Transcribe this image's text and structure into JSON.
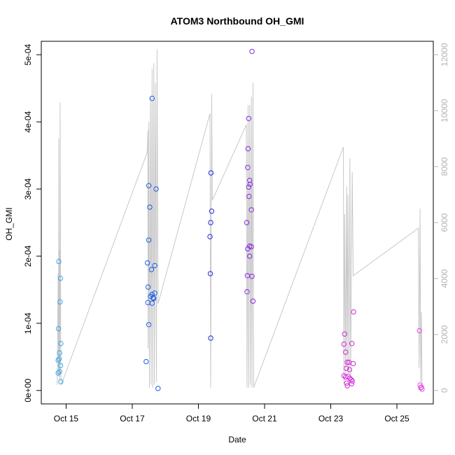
{
  "chart_data": {
    "type": "scatter",
    "title": "ATOM3 Northbound OH_GMI",
    "xlabel": "Date",
    "ylabel": "OH_GMI",
    "x_ticks": [
      "Oct 15",
      "Oct 17",
      "Oct 19",
      "Oct 21",
      "Oct 23",
      "Oct 25"
    ],
    "x_tick_values": [
      15,
      17,
      19,
      21,
      23,
      25
    ],
    "xlim": [
      14.25,
      26.1
    ],
    "y_ticks": [
      "0e+00",
      "1e-04",
      "2e-04",
      "3e-04",
      "4e-04",
      "5e-04"
    ],
    "y_tick_values": [
      0,
      0.0001,
      0.0002,
      0.0003,
      0.0004,
      0.0005
    ],
    "ylim": [
      -2e-05,
      0.00052
    ],
    "y2_ticks": [
      "0",
      "2000",
      "4000",
      "6000",
      "8000",
      "10000",
      "12000"
    ],
    "y2_tick_values": [
      0,
      2000,
      4000,
      6000,
      8000,
      10000,
      12000
    ],
    "y2lim": [
      -480,
      12480
    ],
    "colors": {
      "axis": "#000000",
      "secondary_axis": "#b3b3b3",
      "altitude_line": "#c8c8c8"
    },
    "series": [
      {
        "color": "#3aa8e8",
        "points": [
          [
            14.78,
            0.000192
          ],
          [
            14.77,
            9.2e-05
          ],
          [
            14.76,
            4.5e-05
          ],
          [
            14.79,
            4.7e-05
          ],
          [
            14.8,
            5.6e-05
          ],
          [
            14.8,
            2.8e-05
          ],
          [
            14.76,
            2.6e-05
          ],
          [
            14.83,
            0.000167
          ],
          [
            14.82,
            0.000132
          ],
          [
            14.84,
            7e-05
          ],
          [
            14.83,
            3.7e-05
          ],
          [
            14.84,
            1.3e-05
          ]
        ]
      },
      {
        "color": "#1f5fe8",
        "points": [
          [
            17.6,
            0.000435
          ],
          [
            17.5,
            0.000305
          ],
          [
            17.53,
            0.000273
          ],
          [
            17.5,
            0.000224
          ],
          [
            17.46,
            0.00019
          ],
          [
            17.58,
            0.00018
          ],
          [
            17.68,
            0.000186
          ],
          [
            17.72,
            0.0003
          ],
          [
            17.48,
            0.000154
          ],
          [
            17.55,
            0.00014
          ],
          [
            17.6,
            0.000143
          ],
          [
            17.63,
            0.000138
          ],
          [
            17.68,
            0.000145
          ],
          [
            17.6,
            0.00013
          ],
          [
            17.65,
            0.000137
          ],
          [
            17.47,
            0.000131
          ],
          [
            17.5,
            9.8e-05
          ],
          [
            17.42,
            4.3e-05
          ],
          [
            17.78,
            3e-06
          ]
        ]
      },
      {
        "color": "#2a2ae0",
        "points": [
          [
            19.38,
            0.000324
          ],
          [
            19.4,
            0.000267
          ],
          [
            19.37,
            0.00025
          ],
          [
            19.35,
            0.000229
          ],
          [
            19.36,
            0.000174
          ],
          [
            19.37,
            7.8e-05
          ]
        ]
      },
      {
        "color": "#8a2ae0",
        "points": [
          [
            20.62,
            0.000505
          ],
          [
            20.52,
            0.000405
          ],
          [
            20.5,
            0.00036
          ],
          [
            20.49,
            0.000332
          ],
          [
            20.55,
            0.000313
          ],
          [
            20.52,
            0.000303
          ],
          [
            20.56,
            0.000307
          ],
          [
            20.53,
            0.000289
          ],
          [
            20.6,
            0.000269
          ],
          [
            20.46,
            0.00025
          ],
          [
            20.55,
            0.000215
          ],
          [
            20.6,
            0.000214
          ],
          [
            20.49,
            0.000211
          ],
          [
            20.55,
            0.0002
          ],
          [
            20.48,
            0.000171
          ],
          [
            20.62,
            0.00017
          ],
          [
            20.47,
            0.000147
          ],
          [
            20.65,
            0.000133
          ]
        ]
      },
      {
        "color": "#d12ad6",
        "points": [
          [
            23.42,
            8.4e-05
          ],
          [
            23.4,
            6.9e-05
          ],
          [
            23.69,
            0.000117
          ],
          [
            23.64,
            7e-05
          ],
          [
            23.45,
            5.7e-05
          ],
          [
            23.5,
            4.2e-05
          ],
          [
            23.55,
            4.2e-05
          ],
          [
            23.68,
            4e-05
          ],
          [
            23.47,
            3.3e-05
          ],
          [
            23.57,
            3.1e-05
          ],
          [
            23.4,
            2.2e-05
          ],
          [
            23.45,
            2e-05
          ],
          [
            23.52,
            2.1e-05
          ],
          [
            23.58,
            1.8e-05
          ],
          [
            23.62,
            1.6e-05
          ],
          [
            23.65,
            1.4e-05
          ],
          [
            23.48,
            1.1e-05
          ],
          [
            23.63,
            1e-05
          ],
          [
            23.5,
            7e-06
          ]
        ]
      },
      {
        "color": "#e64fe0",
        "points": [
          [
            25.68,
            8.9e-05
          ],
          [
            25.7,
            8e-06
          ],
          [
            25.72,
            4e-06
          ],
          [
            25.74,
            5e-06
          ],
          [
            25.76,
            2e-06
          ]
        ]
      }
    ],
    "altitude_line": [
      [
        14.73,
        200
      ],
      [
        14.76,
        4200
      ],
      [
        14.77,
        500
      ],
      [
        14.78,
        9000
      ],
      [
        14.79,
        600
      ],
      [
        14.8,
        5000
      ],
      [
        14.81,
        400
      ],
      [
        14.82,
        10300
      ],
      [
        14.84,
        800
      ],
      [
        14.85,
        200
      ],
      [
        17.45,
        8500
      ],
      [
        17.47,
        9300
      ],
      [
        17.48,
        1500
      ],
      [
        17.5,
        9600
      ],
      [
        17.52,
        100
      ],
      [
        17.55,
        10500
      ],
      [
        17.57,
        200
      ],
      [
        17.6,
        11500
      ],
      [
        17.62,
        100
      ],
      [
        17.65,
        11700
      ],
      [
        17.67,
        200
      ],
      [
        17.7,
        11000
      ],
      [
        17.73,
        300
      ],
      [
        17.75,
        12200
      ],
      [
        17.78,
        3100
      ],
      [
        19.35,
        9900
      ],
      [
        19.37,
        100
      ],
      [
        19.4,
        10600
      ],
      [
        19.42,
        6800
      ],
      [
        20.45,
        9500
      ],
      [
        20.47,
        100
      ],
      [
        20.5,
        10200
      ],
      [
        20.52,
        100
      ],
      [
        20.55,
        10200
      ],
      [
        20.57,
        200
      ],
      [
        20.6,
        10500
      ],
      [
        20.62,
        100
      ],
      [
        20.65,
        11000
      ],
      [
        20.67,
        100
      ],
      [
        23.38,
        8700
      ],
      [
        23.4,
        200
      ],
      [
        23.42,
        6300
      ],
      [
        23.45,
        600
      ],
      [
        23.48,
        7300
      ],
      [
        23.5,
        800
      ],
      [
        23.52,
        7000
      ],
      [
        23.55,
        600
      ],
      [
        23.58,
        8300
      ],
      [
        23.6,
        500
      ],
      [
        23.65,
        7800
      ],
      [
        23.68,
        4100
      ],
      [
        25.65,
        5800
      ],
      [
        25.67,
        800
      ],
      [
        25.7,
        6500
      ],
      [
        25.72,
        300
      ],
      [
        25.74,
        2800
      ],
      [
        25.76,
        100
      ]
    ]
  }
}
